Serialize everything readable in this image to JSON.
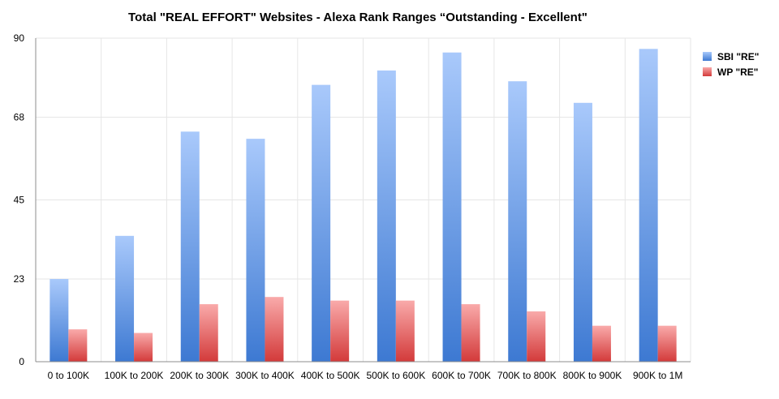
{
  "chart_data": {
    "type": "bar",
    "title": "Total \"REAL EFFORT\" Websites - Alexa Rank Ranges   “Outstanding - Excellent\"",
    "xlabel": "",
    "ylabel": "",
    "categories": [
      "0 to 100K",
      "100K to 200K",
      "200K to 300K",
      "300K to 400K",
      "400K to 500K",
      "500K to 600K",
      "600K to 700K",
      "700K to 800K",
      "800K to 900K",
      "900K to 1M"
    ],
    "series": [
      {
        "name": "SBI \"RE\"",
        "values": [
          23,
          35,
          64,
          62,
          77,
          81,
          86,
          78,
          72,
          87
        ],
        "color": "#4a86d8"
      },
      {
        "name": "WP \"RE\"",
        "values": [
          9,
          8,
          16,
          18,
          17,
          17,
          16,
          14,
          10,
          10
        ],
        "color": "#d94444"
      }
    ],
    "ylim": [
      0,
      90
    ],
    "yticks": [
      0,
      23,
      45,
      68,
      90
    ],
    "grid": true,
    "legend_position": "right"
  }
}
